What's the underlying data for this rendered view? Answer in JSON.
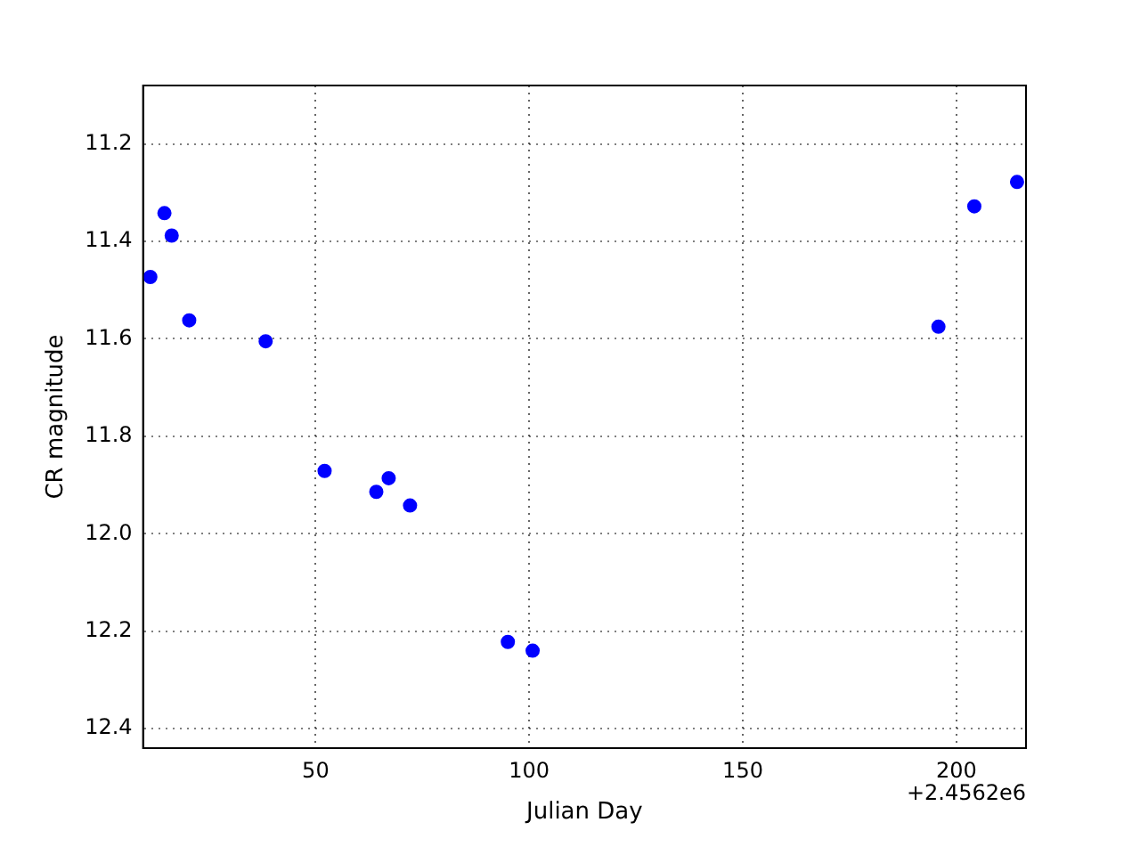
{
  "chart_data": {
    "type": "scatter",
    "xlabel": "Julian Day",
    "ylabel": "CR magnitude",
    "x": [
      11.3,
      14.6,
      16.3,
      20.4,
      38.3,
      52.1,
      64.2,
      67.1,
      72.1,
      95.0,
      100.8,
      195.8,
      204.2,
      214.2
    ],
    "series": [
      {
        "color": "#0000ff",
        "values": [
          11.473,
          11.342,
          11.388,
          11.562,
          11.605,
          11.871,
          11.914,
          11.886,
          11.942,
          12.222,
          12.24,
          11.575,
          11.328,
          11.278
        ]
      }
    ],
    "xlim": [
      9.6,
      216.3
    ],
    "xticks": [
      50,
      100,
      150,
      200
    ],
    "ylim": [
      12.44,
      11.08
    ],
    "yticks": [
      {
        "value": 11.2,
        "label": "11.2"
      },
      {
        "value": 11.4,
        "label": "11.4"
      },
      {
        "value": 11.6,
        "label": "11.6"
      },
      {
        "value": 11.8,
        "label": "11.8"
      },
      {
        "value": 12.0,
        "label": "12.0"
      },
      {
        "value": 12.2,
        "label": "12.2"
      },
      {
        "value": 12.4,
        "label": "12.4"
      }
    ],
    "annotations": [
      "+2.4562e6"
    ],
    "grid": true,
    "legend": false,
    "marker": "circle"
  }
}
